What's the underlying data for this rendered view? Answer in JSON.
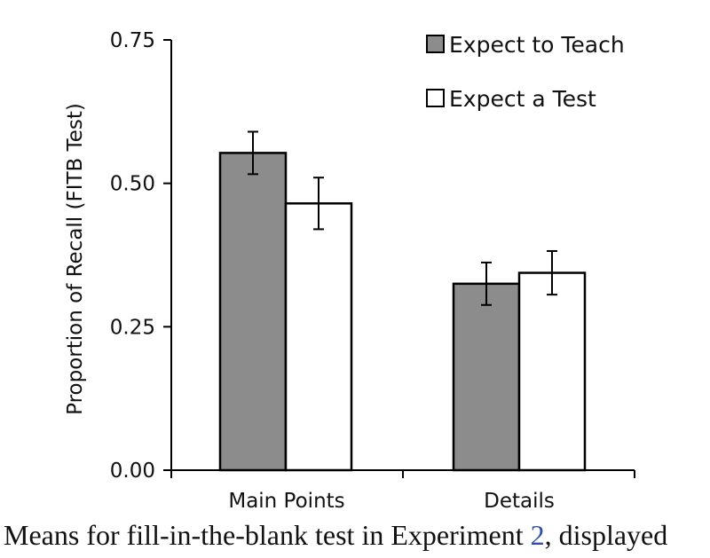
{
  "chart_data": {
    "type": "bar",
    "title": "",
    "xlabel": "",
    "ylabel": "Proportion of Recall (FITB Test)",
    "ylim": [
      0,
      0.75
    ],
    "yticks": [
      "0.00",
      "0.25",
      "0.50",
      "0.75"
    ],
    "categories": [
      "Main Points",
      "Details"
    ],
    "series": [
      {
        "name": "Expect to Teach",
        "color": "#8c8c8c",
        "values": [
          0.553,
          0.325
        ],
        "errors": [
          0.037,
          0.037
        ]
      },
      {
        "name": "Expect a Test",
        "color": "#ffffff",
        "values": [
          0.465,
          0.344
        ],
        "errors": [
          0.045,
          0.038
        ]
      }
    ],
    "legend": "top-right"
  },
  "caption": {
    "before": "Means for fill-in-the-blank test in Experiment ",
    "ref": "2",
    "after": ", displayed"
  }
}
